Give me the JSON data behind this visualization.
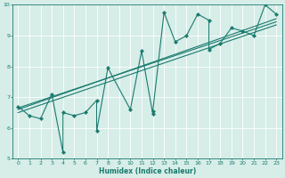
{
  "xlabel": "Humidex (Indice chaleur)",
  "bg_color": "#d6ede8",
  "line_color": "#1a7a6e",
  "grid_color": "#ffffff",
  "xlim": [
    -0.5,
    23.5
  ],
  "ylim": [
    5,
    10
  ],
  "xticks": [
    0,
    1,
    2,
    3,
    4,
    5,
    6,
    7,
    8,
    9,
    10,
    11,
    12,
    13,
    14,
    15,
    16,
    17,
    18,
    19,
    20,
    21,
    22,
    23
  ],
  "yticks": [
    5,
    6,
    7,
    8,
    9,
    10
  ],
  "scatter_x": [
    0,
    1,
    2,
    3,
    4,
    4,
    5,
    6,
    7,
    7,
    8,
    10,
    11,
    12,
    12,
    13,
    14,
    15,
    16,
    17,
    17,
    18,
    19,
    20,
    21,
    22,
    23
  ],
  "scatter_y": [
    6.7,
    6.4,
    6.3,
    7.1,
    5.2,
    6.5,
    6.4,
    6.5,
    6.9,
    5.9,
    7.95,
    6.6,
    8.5,
    6.45,
    6.55,
    9.75,
    8.8,
    9.0,
    9.7,
    9.5,
    8.55,
    8.75,
    9.25,
    9.15,
    9.0,
    10.0,
    9.7
  ],
  "reg_lines": [
    {
      "x": [
        0,
        23
      ],
      "y": [
        6.5,
        9.35
      ]
    },
    {
      "x": [
        0,
        23
      ],
      "y": [
        6.6,
        9.55
      ]
    },
    {
      "x": [
        0,
        23
      ],
      "y": [
        6.65,
        9.45
      ]
    }
  ],
  "tick_fontsize": 4.5,
  "xlabel_fontsize": 5.5,
  "marker_size": 2.2,
  "line_width": 0.8
}
